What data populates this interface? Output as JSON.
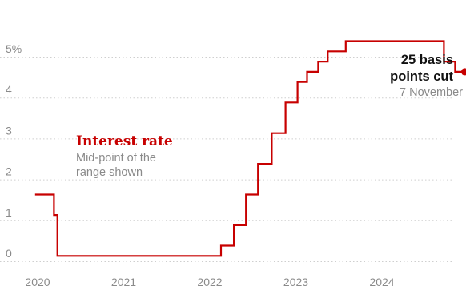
{
  "chart_data": {
    "type": "line",
    "step": true,
    "title": "Interest rate",
    "subtitle_lines": [
      "Mid-point of the",
      "range shown"
    ],
    "ylim": [
      0,
      5.25
    ],
    "y_ticks": [
      {
        "value": 0,
        "label": "0"
      },
      {
        "value": 1,
        "label": "1"
      },
      {
        "value": 2,
        "label": "2"
      },
      {
        "value": 3,
        "label": "3"
      },
      {
        "value": 4,
        "label": "4"
      },
      {
        "value": 5,
        "label": "5%"
      }
    ],
    "x_ticks": [
      {
        "value": 2020,
        "label": "2020"
      },
      {
        "value": 2021,
        "label": "2021"
      },
      {
        "value": 2022,
        "label": "2022"
      },
      {
        "value": 2023,
        "label": "2023"
      },
      {
        "value": 2024,
        "label": "2024"
      }
    ],
    "grid": "horizontal dotted",
    "colors": {
      "line": "#c70000",
      "text": "#8a8a8a",
      "annotation": "#111111"
    },
    "series": [
      {
        "values": [
          {
            "x": 2019.97,
            "y": 1.63
          },
          {
            "x": 2020.19,
            "y": 1.13
          },
          {
            "x": 2020.23,
            "y": 0.13
          },
          {
            "x": 2022.13,
            "y": 0.38
          },
          {
            "x": 2022.28,
            "y": 0.88
          },
          {
            "x": 2022.42,
            "y": 1.63
          },
          {
            "x": 2022.56,
            "y": 2.38
          },
          {
            "x": 2022.72,
            "y": 3.13
          },
          {
            "x": 2022.88,
            "y": 3.88
          },
          {
            "x": 2023.02,
            "y": 4.38
          },
          {
            "x": 2023.13,
            "y": 4.63
          },
          {
            "x": 2023.26,
            "y": 4.88
          },
          {
            "x": 2023.37,
            "y": 5.13
          },
          {
            "x": 2023.58,
            "y": 5.38
          },
          {
            "x": 2024.72,
            "y": 4.88
          },
          {
            "x": 2024.85,
            "y": 4.63
          }
        ]
      }
    ],
    "annotation": {
      "lines": [
        "25 basis",
        "points cut"
      ],
      "date": "7 November"
    }
  }
}
